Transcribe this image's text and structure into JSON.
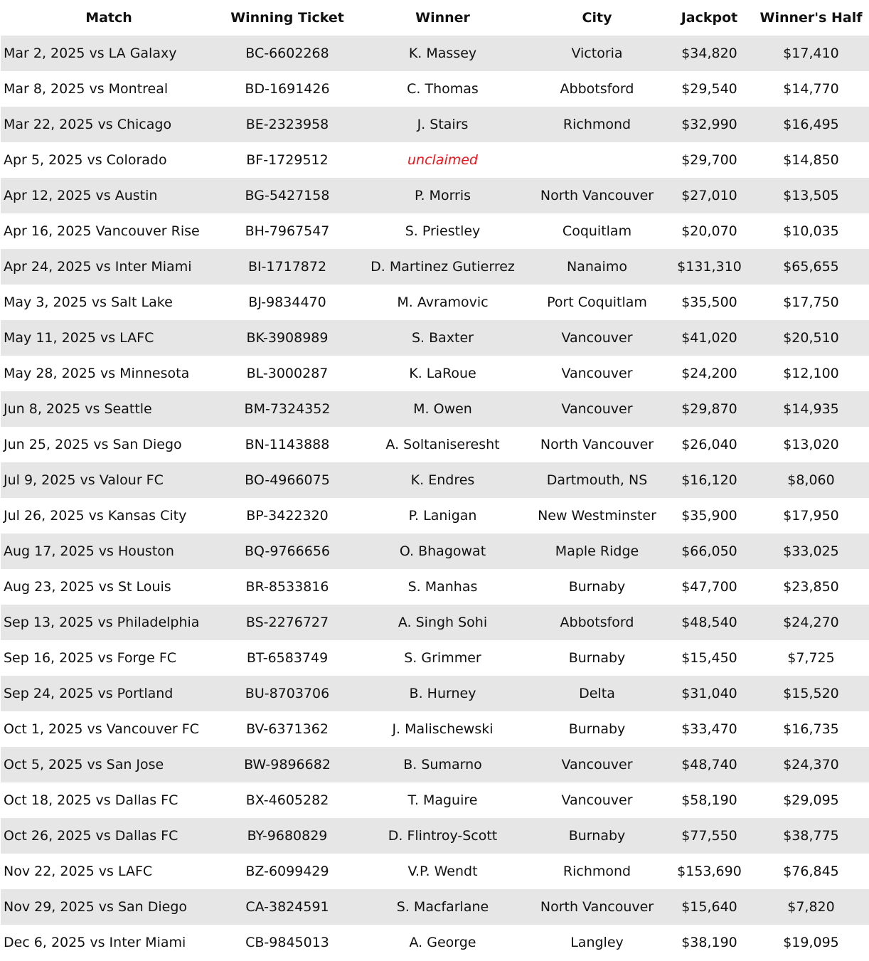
{
  "headers": [
    "Match",
    "Winning Ticket",
    "Winner",
    "City",
    "Jackpot",
    "Winner's Half"
  ],
  "highlight_color": "#e8141b",
  "rows": [
    [
      "Mar 2, 2025 vs LA Galaxy",
      "BC-6602268",
      "K. Massey",
      "Victoria",
      "$34,820",
      "$17,410"
    ],
    [
      "Mar 8, 2025 vs Montreal",
      "BD-1691426",
      "C. Thomas",
      "Abbotsford",
      "$29,540",
      "$14,770"
    ],
    [
      "Mar 22, 2025 vs Chicago",
      "BE-2323958",
      "J. Stairs",
      "Richmond",
      "$32,990",
      "$16,495"
    ],
    [
      "Apr 5, 2025 vs Colorado",
      "BF-1729512",
      "unclaimed",
      "",
      "$29,700",
      "$14,850"
    ],
    [
      "Apr 12, 2025 vs Austin",
      "BG-5427158",
      "P. Morris",
      "North Vancouver",
      "$27,010",
      "$13,505"
    ],
    [
      "Apr 16, 2025 Vancouver Rise",
      "BH-7967547",
      "S. Priestley",
      "Coquitlam",
      "$20,070",
      "$10,035"
    ],
    [
      "Apr 24, 2025 vs Inter Miami",
      "BI-1717872",
      "D. Martinez Gutierrez",
      "Nanaimo",
      "$131,310",
      "$65,655"
    ],
    [
      "May 3, 2025 vs Salt Lake",
      "BJ-9834470",
      "M. Avramovic",
      "Port Coquitlam",
      "$35,500",
      "$17,750"
    ],
    [
      "May 11, 2025 vs LAFC",
      "BK-3908989",
      "S. Baxter",
      "Vancouver",
      "$41,020",
      "$20,510"
    ],
    [
      "May 28, 2025 vs Minnesota",
      "BL-3000287",
      "K. LaRoue",
      "Vancouver",
      "$24,200",
      "$12,100"
    ],
    [
      "Jun 8, 2025 vs Seattle",
      "BM-7324352",
      "M. Owen",
      "Vancouver",
      "$29,870",
      "$14,935"
    ],
    [
      "Jun 25, 2025 vs San Diego",
      "BN-1143888",
      "A. Soltaniseresht",
      "North Vancouver",
      "$26,040",
      "$13,020"
    ],
    [
      "Jul 9, 2025 vs Valour FC",
      "BO-4966075",
      "K. Endres",
      "Dartmouth, NS",
      "$16,120",
      "$8,060"
    ],
    [
      "Jul 26, 2025 vs Kansas City",
      "BP-3422320",
      "P. Lanigan",
      "New Westminster",
      "$35,900",
      "$17,950"
    ],
    [
      "Aug 17, 2025 vs Houston",
      "BQ-9766656",
      "O. Bhagowat",
      "Maple Ridge",
      "$66,050",
      "$33,025"
    ],
    [
      "Aug 23, 2025 vs St Louis",
      "BR-8533816",
      "S. Manhas",
      "Burnaby",
      "$47,700",
      "$23,850"
    ],
    [
      "Sep 13, 2025 vs Philadelphia",
      "BS-2276727",
      "A. Singh Sohi",
      "Abbotsford",
      "$48,540",
      "$24,270"
    ],
    [
      "Sep 16, 2025 vs Forge FC",
      "BT-6583749",
      "S. Grimmer",
      "Burnaby",
      "$15,450",
      "$7,725"
    ],
    [
      "Sep 24, 2025 vs Portland",
      "BU-8703706",
      "B. Hurney",
      "Delta",
      "$31,040",
      "$15,520"
    ],
    [
      "Oct 1, 2025 vs Vancouver FC",
      "BV-6371362",
      "J. Malischewski",
      "Burnaby",
      "$33,470",
      "$16,735"
    ],
    [
      "Oct 5, 2025 vs San Jose",
      "BW-9896682",
      "B. Sumarno",
      "Vancouver",
      "$48,740",
      "$24,370"
    ],
    [
      "Oct 18, 2025 vs Dallas FC",
      "BX-4605282",
      "T. Maguire",
      "Vancouver",
      "$58,190",
      "$29,095"
    ],
    [
      "Oct 26, 2025 vs Dallas FC",
      "BY-9680829",
      "D. Flintroy-Scott",
      "Burnaby",
      "$77,550",
      "$38,775"
    ],
    [
      "Nov 22, 2025 vs LAFC",
      "BZ-6099429",
      "V.P. Wendt",
      "Richmond",
      "$153,690",
      "$76,845"
    ],
    [
      "Nov 29, 2025 vs San Diego",
      "CA-3824591",
      "S. Macfarlane",
      "North Vancouver",
      "$15,640",
      "$7,820"
    ],
    [
      "Dec 6, 2025 vs Inter Miami",
      "CB-9845013",
      "A. George",
      "Langley",
      "$38,190",
      "$19,095"
    ]
  ]
}
